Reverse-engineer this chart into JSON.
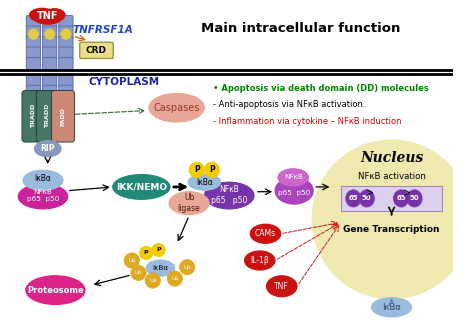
{
  "bg_color": "#ffffff",
  "main_title": "Main intracellular function",
  "cytoplasm_label": "CYTOPLASM",
  "bullets": [
    {
      "text": "Apoptosis via death domain (DD) molecules",
      "color": "#008800",
      "bold": true
    },
    {
      "text": "Anti-apoptosis via NFκB activation.",
      "color": "#000000",
      "bold": false
    },
    {
      "text": "Inflammation via cytokine – NFκB induction",
      "color": "#cc0000",
      "bold": false
    }
  ],
  "nucleus_color": "#f0eab0",
  "nucleus_border": "#c8aa22",
  "teal_color": "#228877",
  "magenta_color": "#cc2299",
  "purple_dark": "#7733aa",
  "purple_mid": "#aa44bb",
  "purple_light": "#cc66cc",
  "pink_salmon": "#e8a898",
  "red_dark": "#cc1111",
  "blue_light": "#99bbdd",
  "blue_mid": "#6688cc",
  "yellow_p": "#f0cc00",
  "yellow_ub": "#ddaa22",
  "orange_ub": "#dd8833",
  "membrane_color": "#000000",
  "receptor_blue": "#8899cc",
  "receptor_edge": "#5566aa",
  "receptor_yellow": "#ddcc44",
  "tradd_teal": "#447766",
  "fadd_pink": "#cc8877",
  "rip_blue": "#8899bb",
  "caspase_pink": "#e8a898"
}
